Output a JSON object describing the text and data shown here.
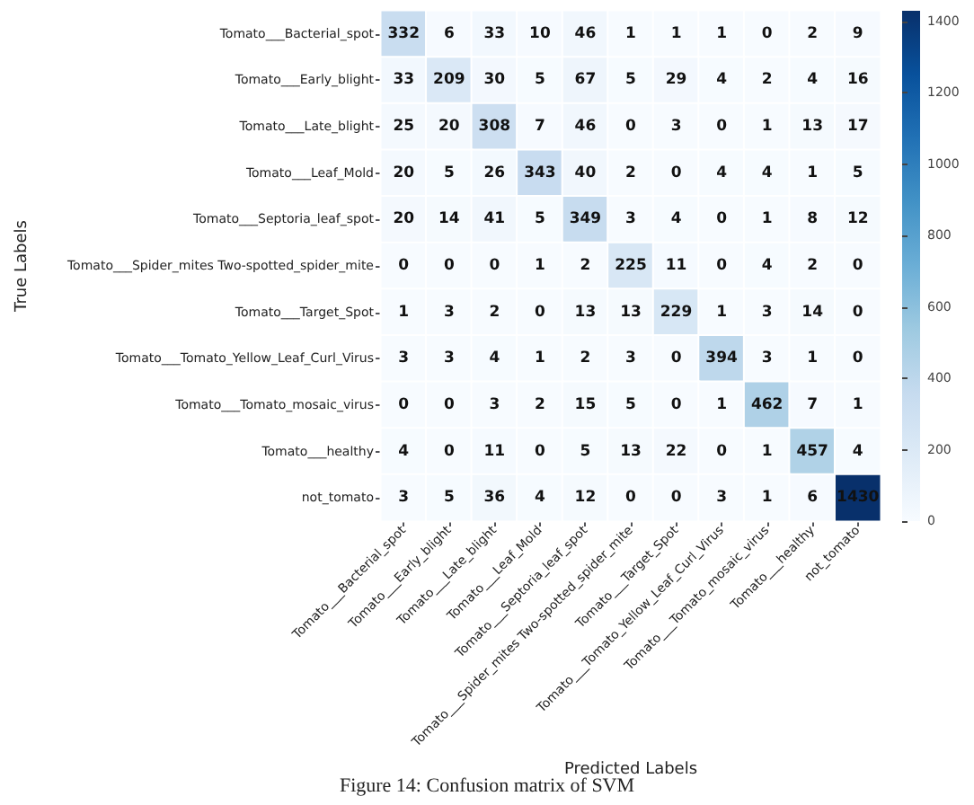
{
  "chart_data": {
    "type": "heatmap",
    "xlabel": "Predicted Labels",
    "ylabel": "True Labels",
    "categories": [
      "Tomato___Bacterial_spot",
      "Tomato___Early_blight",
      "Tomato___Late_blight",
      "Tomato___Leaf_Mold",
      "Tomato___Septoria_leaf_spot",
      "Tomato___Spider_mites Two-spotted_spider_mite",
      "Tomato___Target_Spot",
      "Tomato___Tomato_Yellow_Leaf_Curl_Virus",
      "Tomato___Tomato_mosaic_virus",
      "Tomato___healthy",
      "not_tomato"
    ],
    "y_categories": [
      "Tomato___Bacterial_spot",
      "Tomato___Early_blight",
      "Tomato___Late_blight",
      "Tomato___Leaf_Mold",
      "Tomato___Septoria_leaf_spot",
      "Tomato___Spider_mites Two-spotted_spider_mite",
      "Tomato___Target_Spot",
      "Tomato___Tomato_Yellow_Leaf_Curl_Virus",
      "Tomato___Tomato_mosaic_virus",
      "Tomato___healthy",
      "not_tomato"
    ],
    "cells": [
      [
        332,
        6,
        33,
        10,
        46,
        1,
        1,
        1,
        0,
        2,
        9
      ],
      [
        33,
        209,
        30,
        5,
        67,
        5,
        29,
        4,
        2,
        4,
        16
      ],
      [
        25,
        20,
        308,
        7,
        46,
        0,
        3,
        0,
        1,
        13,
        17
      ],
      [
        20,
        5,
        26,
        343,
        40,
        2,
        0,
        4,
        4,
        1,
        5
      ],
      [
        20,
        14,
        41,
        5,
        349,
        3,
        4,
        0,
        1,
        8,
        12
      ],
      [
        0,
        0,
        0,
        1,
        2,
        225,
        11,
        0,
        4,
        2,
        0
      ],
      [
        1,
        3,
        2,
        0,
        13,
        13,
        229,
        1,
        3,
        14,
        0
      ],
      [
        3,
        3,
        4,
        1,
        2,
        3,
        0,
        394,
        3,
        1,
        0
      ],
      [
        0,
        0,
        3,
        2,
        15,
        5,
        0,
        1,
        462,
        7,
        1
      ],
      [
        4,
        0,
        11,
        0,
        5,
        13,
        22,
        0,
        1,
        457,
        4
      ],
      [
        3,
        5,
        36,
        4,
        12,
        0,
        0,
        3,
        1,
        6,
        1430
      ]
    ],
    "data_labels": true,
    "clim": [
      0,
      1430
    ],
    "cticks": [
      0,
      200,
      400,
      600,
      800,
      1000,
      1200,
      1400
    ],
    "annotations": [
      "Figure 14: Confusion matrix of SVM"
    ]
  }
}
